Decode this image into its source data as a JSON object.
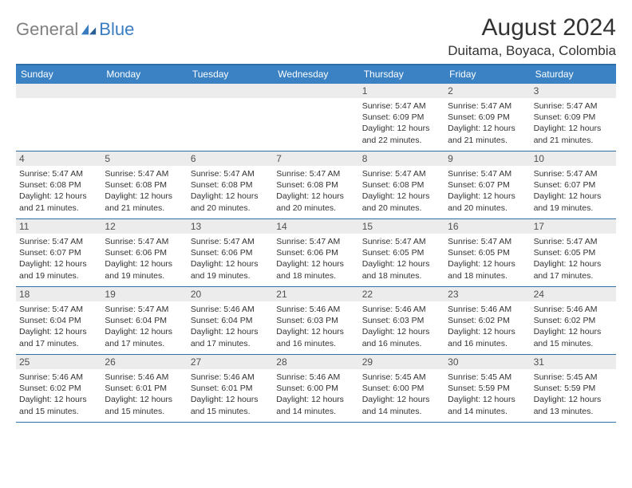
{
  "brand": {
    "general": "General",
    "blue": "Blue"
  },
  "title": "August 2024",
  "location": "Duitama, Boyaca, Colombia",
  "colors": {
    "header_bg": "#3a82c4",
    "border": "#2f6fa8",
    "daynum_bg": "#ececec",
    "logo_gray": "#808080",
    "logo_blue": "#3a7cc0",
    "text": "#333333"
  },
  "weekdays": [
    "Sunday",
    "Monday",
    "Tuesday",
    "Wednesday",
    "Thursday",
    "Friday",
    "Saturday"
  ],
  "weeks": [
    [
      null,
      null,
      null,
      null,
      {
        "n": "1",
        "sr": "5:47 AM",
        "ss": "6:09 PM",
        "dl": "12 hours and 22 minutes."
      },
      {
        "n": "2",
        "sr": "5:47 AM",
        "ss": "6:09 PM",
        "dl": "12 hours and 21 minutes."
      },
      {
        "n": "3",
        "sr": "5:47 AM",
        "ss": "6:09 PM",
        "dl": "12 hours and 21 minutes."
      }
    ],
    [
      {
        "n": "4",
        "sr": "5:47 AM",
        "ss": "6:08 PM",
        "dl": "12 hours and 21 minutes."
      },
      {
        "n": "5",
        "sr": "5:47 AM",
        "ss": "6:08 PM",
        "dl": "12 hours and 21 minutes."
      },
      {
        "n": "6",
        "sr": "5:47 AM",
        "ss": "6:08 PM",
        "dl": "12 hours and 20 minutes."
      },
      {
        "n": "7",
        "sr": "5:47 AM",
        "ss": "6:08 PM",
        "dl": "12 hours and 20 minutes."
      },
      {
        "n": "8",
        "sr": "5:47 AM",
        "ss": "6:08 PM",
        "dl": "12 hours and 20 minutes."
      },
      {
        "n": "9",
        "sr": "5:47 AM",
        "ss": "6:07 PM",
        "dl": "12 hours and 20 minutes."
      },
      {
        "n": "10",
        "sr": "5:47 AM",
        "ss": "6:07 PM",
        "dl": "12 hours and 19 minutes."
      }
    ],
    [
      {
        "n": "11",
        "sr": "5:47 AM",
        "ss": "6:07 PM",
        "dl": "12 hours and 19 minutes."
      },
      {
        "n": "12",
        "sr": "5:47 AM",
        "ss": "6:06 PM",
        "dl": "12 hours and 19 minutes."
      },
      {
        "n": "13",
        "sr": "5:47 AM",
        "ss": "6:06 PM",
        "dl": "12 hours and 19 minutes."
      },
      {
        "n": "14",
        "sr": "5:47 AM",
        "ss": "6:06 PM",
        "dl": "12 hours and 18 minutes."
      },
      {
        "n": "15",
        "sr": "5:47 AM",
        "ss": "6:05 PM",
        "dl": "12 hours and 18 minutes."
      },
      {
        "n": "16",
        "sr": "5:47 AM",
        "ss": "6:05 PM",
        "dl": "12 hours and 18 minutes."
      },
      {
        "n": "17",
        "sr": "5:47 AM",
        "ss": "6:05 PM",
        "dl": "12 hours and 17 minutes."
      }
    ],
    [
      {
        "n": "18",
        "sr": "5:47 AM",
        "ss": "6:04 PM",
        "dl": "12 hours and 17 minutes."
      },
      {
        "n": "19",
        "sr": "5:47 AM",
        "ss": "6:04 PM",
        "dl": "12 hours and 17 minutes."
      },
      {
        "n": "20",
        "sr": "5:46 AM",
        "ss": "6:04 PM",
        "dl": "12 hours and 17 minutes."
      },
      {
        "n": "21",
        "sr": "5:46 AM",
        "ss": "6:03 PM",
        "dl": "12 hours and 16 minutes."
      },
      {
        "n": "22",
        "sr": "5:46 AM",
        "ss": "6:03 PM",
        "dl": "12 hours and 16 minutes."
      },
      {
        "n": "23",
        "sr": "5:46 AM",
        "ss": "6:02 PM",
        "dl": "12 hours and 16 minutes."
      },
      {
        "n": "24",
        "sr": "5:46 AM",
        "ss": "6:02 PM",
        "dl": "12 hours and 15 minutes."
      }
    ],
    [
      {
        "n": "25",
        "sr": "5:46 AM",
        "ss": "6:02 PM",
        "dl": "12 hours and 15 minutes."
      },
      {
        "n": "26",
        "sr": "5:46 AM",
        "ss": "6:01 PM",
        "dl": "12 hours and 15 minutes."
      },
      {
        "n": "27",
        "sr": "5:46 AM",
        "ss": "6:01 PM",
        "dl": "12 hours and 15 minutes."
      },
      {
        "n": "28",
        "sr": "5:46 AM",
        "ss": "6:00 PM",
        "dl": "12 hours and 14 minutes."
      },
      {
        "n": "29",
        "sr": "5:45 AM",
        "ss": "6:00 PM",
        "dl": "12 hours and 14 minutes."
      },
      {
        "n": "30",
        "sr": "5:45 AM",
        "ss": "5:59 PM",
        "dl": "12 hours and 14 minutes."
      },
      {
        "n": "31",
        "sr": "5:45 AM",
        "ss": "5:59 PM",
        "dl": "12 hours and 13 minutes."
      }
    ]
  ],
  "labels": {
    "sunrise": "Sunrise: ",
    "sunset": "Sunset: ",
    "daylight": "Daylight: "
  }
}
